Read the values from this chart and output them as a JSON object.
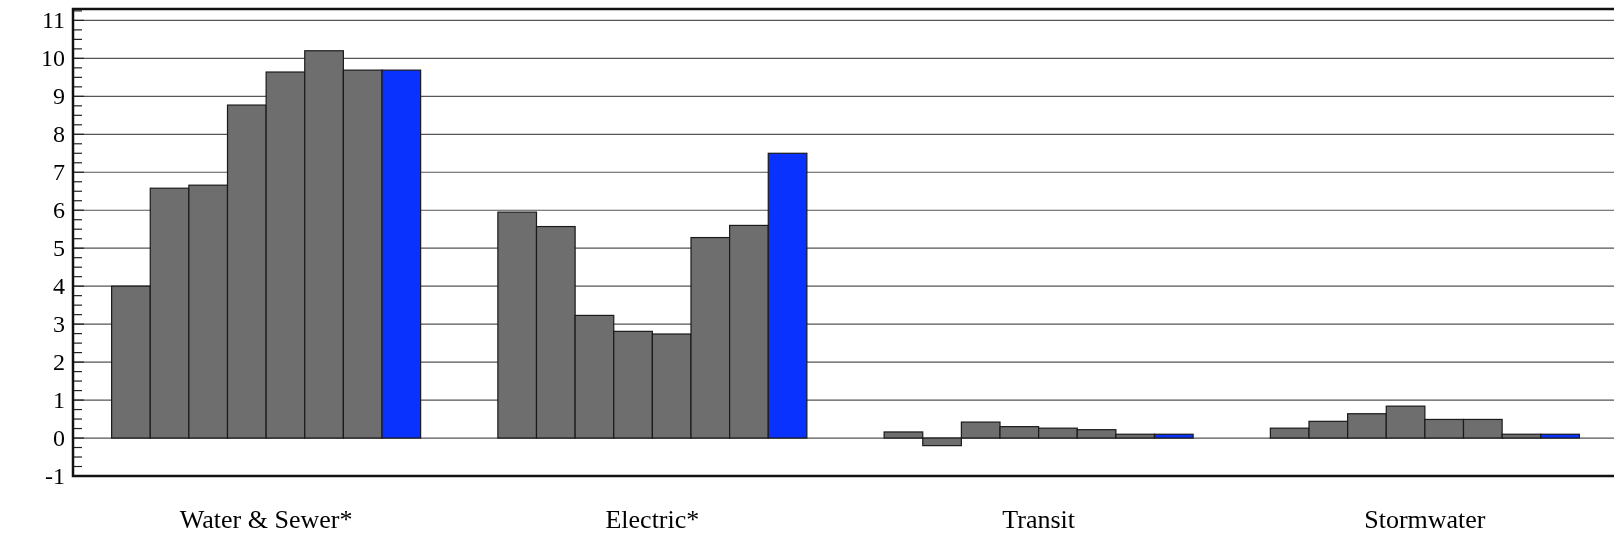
{
  "chart_data": {
    "type": "bar",
    "categories": [
      "Water & Sewer*",
      "Electric*",
      "Transit",
      "Stormwater"
    ],
    "series": [
      {
        "color": "#6e6e6e",
        "values": [
          4.0,
          5.95,
          0.16,
          0.26
        ]
      },
      {
        "color": "#6e6e6e",
        "values": [
          6.58,
          5.57,
          -0.2,
          0.44
        ]
      },
      {
        "color": "#6e6e6e",
        "values": [
          6.66,
          3.23,
          0.42,
          0.64
        ]
      },
      {
        "color": "#6e6e6e",
        "values": [
          8.77,
          2.81,
          0.3,
          0.84
        ]
      },
      {
        "color": "#6e6e6e",
        "values": [
          9.64,
          2.74,
          0.26,
          0.49
        ]
      },
      {
        "color": "#6e6e6e",
        "values": [
          10.2,
          5.28,
          0.22,
          0.49
        ]
      },
      {
        "color": "#6e6e6e",
        "values": [
          9.69,
          5.6,
          0.1,
          0.1
        ]
      },
      {
        "color": "#0a32ff",
        "values": [
          9.69,
          7.5,
          0.1,
          0.1
        ]
      }
    ],
    "ylim": [
      -1,
      11.3
    ],
    "yticks": [
      -1,
      {
        "value": -0.75,
        "label": null
      },
      {
        "value": -0.5,
        "label": null
      },
      {
        "value": -0.25,
        "label": null
      },
      0,
      {
        "value": 0.25,
        "label": null
      },
      {
        "value": 0.5,
        "label": null
      },
      {
        "value": 0.75,
        "label": null
      },
      1,
      {
        "value": 1.25,
        "label": null
      },
      {
        "value": 1.5,
        "label": null
      },
      {
        "value": 1.75,
        "label": null
      },
      2,
      {
        "value": 2.25,
        "label": null
      },
      {
        "value": 2.5,
        "label": null
      },
      {
        "value": 2.75,
        "label": null
      },
      3,
      {
        "value": 3.25,
        "label": null
      },
      {
        "value": 3.5,
        "label": null
      },
      {
        "value": 3.75,
        "label": null
      },
      4,
      {
        "value": 4.25,
        "label": null
      },
      {
        "value": 4.5,
        "label": null
      },
      {
        "value": 4.75,
        "label": null
      },
      5,
      {
        "value": 5.25,
        "label": null
      },
      {
        "value": 5.5,
        "label": null
      },
      {
        "value": 5.75,
        "label": null
      },
      6,
      {
        "value": 6.25,
        "label": null
      },
      {
        "value": 6.5,
        "label": null
      },
      {
        "value": 6.75,
        "label": null
      },
      7,
      {
        "value": 7.25,
        "label": null
      },
      {
        "value": 7.5,
        "label": null
      },
      {
        "value": 7.75,
        "label": null
      },
      8,
      {
        "value": 8.25,
        "label": null
      },
      {
        "value": 8.5,
        "label": null
      },
      {
        "value": 8.75,
        "label": null
      },
      9,
      {
        "value": 9.25,
        "label": null
      },
      {
        "value": 9.5,
        "label": null
      },
      {
        "value": 9.75,
        "label": null
      },
      10,
      {
        "value": 10.25,
        "label": null
      },
      {
        "value": 10.5,
        "label": null
      },
      {
        "value": 10.75,
        "label": null
      },
      11,
      {
        "value": 11.25,
        "label": null
      }
    ],
    "grid": "y"
  }
}
